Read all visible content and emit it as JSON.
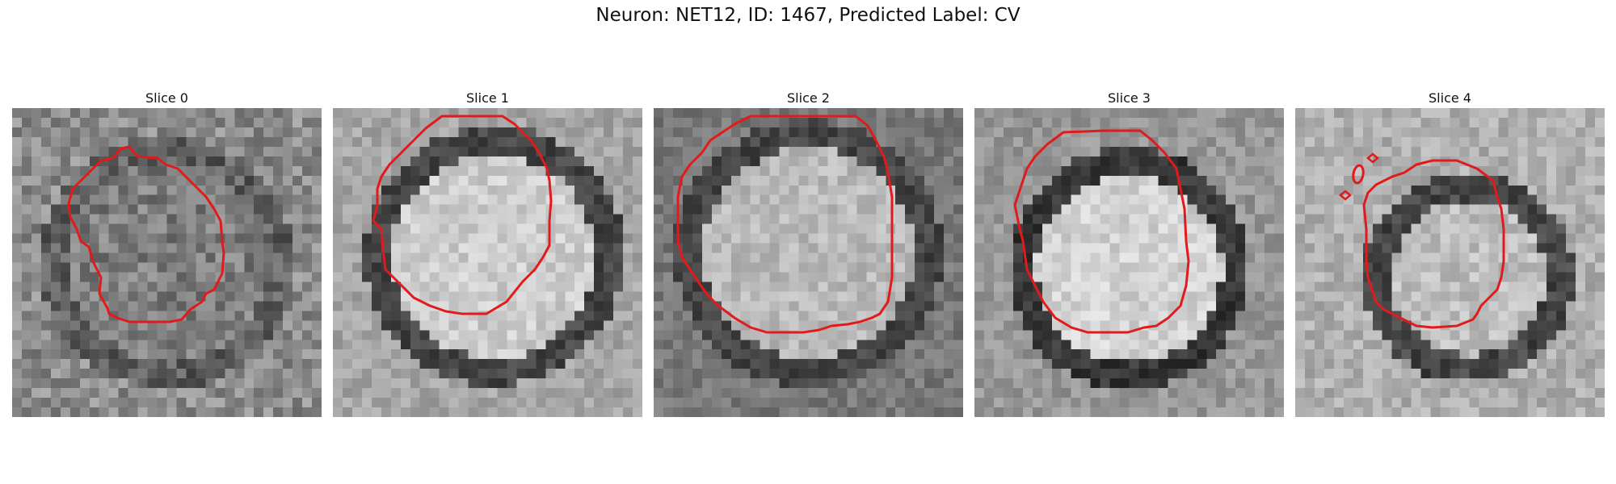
{
  "figure": {
    "title": "Neuron: NET12, ID: 1467, Predicted Label: CV"
  },
  "panels": [
    {
      "title": "Slice 0"
    },
    {
      "title": "Slice 1"
    },
    {
      "title": "Slice 2"
    },
    {
      "title": "Slice 3"
    },
    {
      "title": "Slice 4"
    }
  ],
  "colors": {
    "contour": "#e31a1c",
    "background": "#ffffff"
  }
}
